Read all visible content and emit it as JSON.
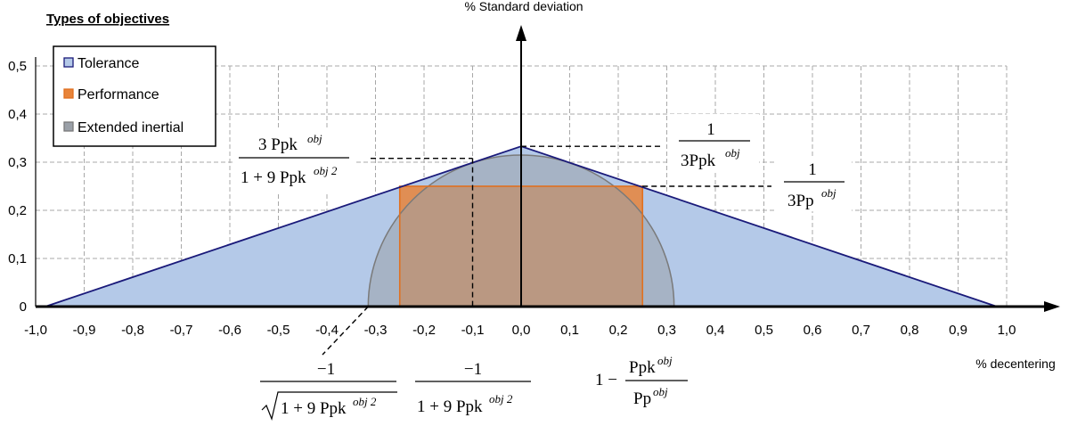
{
  "chart_data": {
    "type": "area",
    "title": "Types of objectives",
    "xlabel": "% decentering",
    "ylabel": "% Standard deviation",
    "xlim": [
      -1.0,
      1.0
    ],
    "ylim": [
      0,
      0.5
    ],
    "x_ticks": [
      "-1,0",
      "-0,9",
      "-0,8",
      "-0,7",
      "-0,6",
      "-0,5",
      "-0,4",
      "-0,3",
      "-0,2",
      "-0,1",
      "0,0",
      "0,1",
      "0,2",
      "0,3",
      "0,4",
      "0,5",
      "0,6",
      "0,7",
      "0,8",
      "0,9",
      "1,0"
    ],
    "y_ticks": [
      "0",
      "0,1",
      "0,2",
      "0,3",
      "0,4",
      "0,5"
    ],
    "grid": true,
    "legend_position": "top-left",
    "series": [
      {
        "name": "Tolerance",
        "shape": "triangle",
        "color": "#b4c9e8",
        "edge_color": "#1a1a7a",
        "points": [
          [
            -0.98,
            0
          ],
          [
            0.0,
            0.333
          ],
          [
            0.98,
            0
          ]
        ]
      },
      {
        "name": "Performance",
        "shape": "rectangle",
        "color": "#e8843a",
        "edge_color": "#e07020",
        "points": [
          [
            -0.25,
            0
          ],
          [
            -0.25,
            0.25
          ],
          [
            0.25,
            0.25
          ],
          [
            0.25,
            0
          ]
        ]
      },
      {
        "name": "Extended inertial",
        "shape": "half-ellipse",
        "color": "#9aa0a8",
        "edge_color": "#7a7a7a",
        "center": [
          0,
          0
        ],
        "semi_axes": [
          0.315,
          0.315
        ]
      }
    ],
    "annotations": {
      "f1": {
        "num": "3 Ppk",
        "num_sup": "obj",
        "den": "1 + 9 Ppk",
        "den_sup": "obj 2"
      },
      "f2": {
        "num": "1",
        "den": "3Ppk",
        "den_sup": "obj"
      },
      "f3": {
        "num": "1",
        "den": "3Pp",
        "den_sup": "obj"
      },
      "f4": {
        "num": "−1",
        "den": "1 + 9 Ppk",
        "den_sup": "obj 2"
      },
      "f5": {
        "num": "−1",
        "den": "1 + 9 Ppk",
        "den_sup": "obj 2"
      },
      "f6": {
        "prefix": "1 −",
        "num": "Ppk",
        "num_sup": "obj",
        "den": "Pp",
        "den_sup": "obj"
      }
    }
  }
}
